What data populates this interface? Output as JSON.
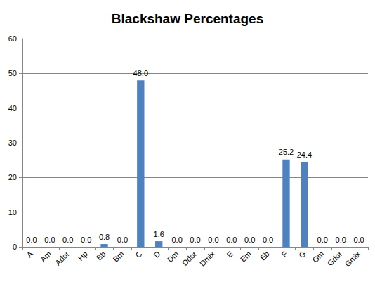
{
  "chart_data": {
    "type": "bar",
    "title": "Blackshaw Percentages",
    "categories": [
      "A",
      "Am",
      "Ador",
      "Hp",
      "Bb",
      "Bm",
      "C",
      "D",
      "Dm",
      "Ddor",
      "Dmix",
      "E",
      "Em",
      "Eb",
      "F",
      "G",
      "Gm",
      "Gdor",
      "Gmix"
    ],
    "values": [
      0,
      0,
      0,
      0,
      0.8,
      0,
      48,
      1.6,
      0,
      0,
      0,
      0,
      0,
      0,
      25.2,
      24.4,
      0,
      0,
      0
    ],
    "value_labels": [
      "0.0",
      "0.0",
      "0.0",
      "0.0",
      "0.8",
      "0.0",
      "48.0",
      "1.6",
      "0.0",
      "0.0",
      "0.0",
      "0.0",
      "0.0",
      "0.0",
      "25.2",
      "24.4",
      "0.0",
      "0.0",
      "0.0"
    ],
    "color": "#4f81bd",
    "ylim": [
      0,
      60
    ],
    "yticks": [
      0,
      10,
      20,
      30,
      40,
      50,
      60
    ],
    "grid": true,
    "data_labels": true
  }
}
